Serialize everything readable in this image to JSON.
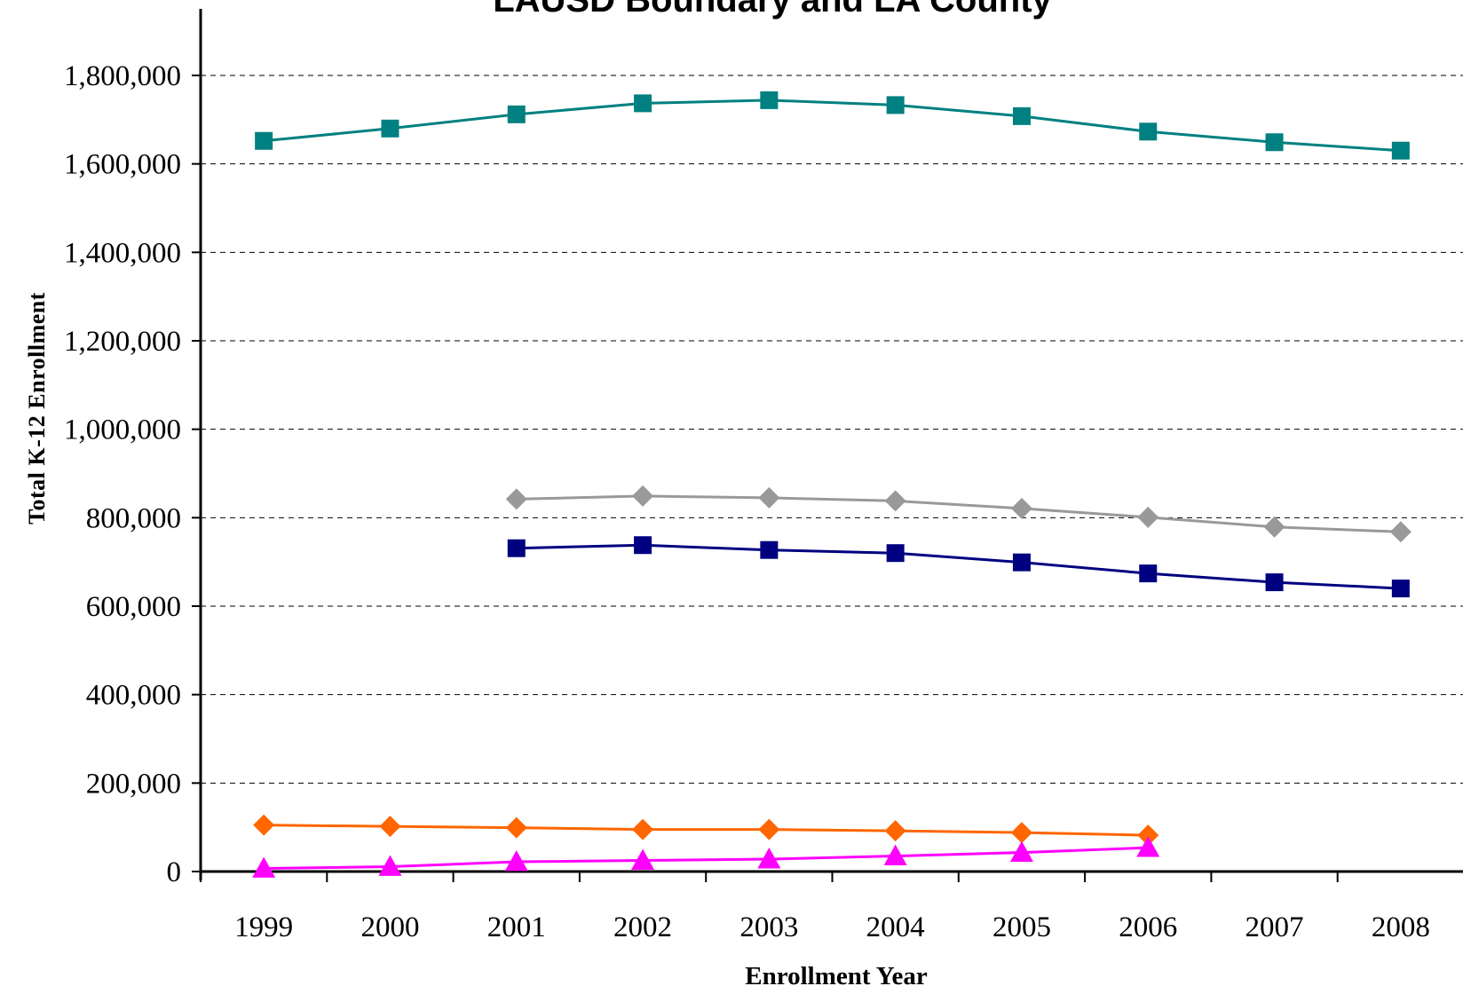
{
  "chart_data": {
    "type": "line",
    "title": "LAUSD Boundary and LA County",
    "xlabel": "Enrollment Year",
    "ylabel": "Total K-12 Enrollment",
    "categories": [
      "1999",
      "2000",
      "2001",
      "2002",
      "2003",
      "2004",
      "2005",
      "2006",
      "2007",
      "2008"
    ],
    "ylim": [
      0,
      1800000
    ],
    "y_ticks": [
      0,
      200000,
      400000,
      600000,
      800000,
      1000000,
      1200000,
      1400000,
      1600000,
      1800000
    ],
    "y_tick_labels": [
      "0",
      "200,000",
      "400,000",
      "600,000",
      "800,000",
      "1,000,000",
      "1,200,000",
      "1,400,000",
      "1,600,000",
      "1,800,000"
    ],
    "grid": "horizontal dashed",
    "legend": "none",
    "series": [
      {
        "color": "#008080",
        "marker": "square",
        "values": [
          1652000,
          1680000,
          1712000,
          1737000,
          1744000,
          1733000,
          1708000,
          1673000,
          1649000,
          1630000
        ]
      },
      {
        "color": "#999999",
        "marker": "diamond",
        "values": [
          null,
          null,
          842000,
          849000,
          845000,
          838000,
          821000,
          801000,
          779000,
          768000
        ]
      },
      {
        "color": "#000080",
        "marker": "square",
        "values": [
          null,
          null,
          731000,
          738000,
          727000,
          720000,
          699000,
          674000,
          654000,
          640000
        ]
      },
      {
        "color": "#FF6600",
        "marker": "diamond",
        "values": [
          105000,
          102000,
          99000,
          95000,
          95000,
          92000,
          88000,
          82000,
          null,
          null
        ]
      },
      {
        "color": "#FF00FF",
        "marker": "triangle",
        "values": [
          7000,
          11000,
          22000,
          25000,
          28000,
          35000,
          43000,
          54000,
          null,
          null
        ]
      }
    ]
  }
}
